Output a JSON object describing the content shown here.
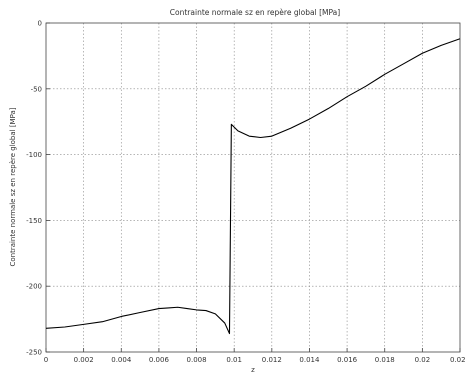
{
  "chart_data": {
    "type": "line",
    "title": "Contrainte normale sz en repère global [MPa]",
    "xlabel": "z",
    "ylabel": "Contrainte normale sz en repère global [MPa]",
    "xlim": [
      0,
      0.022
    ],
    "ylim": [
      -250,
      0
    ],
    "grid": true,
    "x_ticks": [
      0,
      0.002,
      0.004,
      0.006,
      0.008,
      0.01,
      0.012,
      0.014,
      0.016,
      0.018,
      0.02,
      0.022
    ],
    "x_tick_labels": [
      "0",
      "0.002",
      "0.004",
      "0.006",
      "0.008",
      "0.01",
      "0.012",
      "0.014",
      "0.016",
      "0.018",
      "0.02",
      "0.022"
    ],
    "y_ticks": [
      -250,
      -200,
      -150,
      -100,
      -50,
      0
    ],
    "y_tick_labels": [
      "-250",
      "-200",
      "-150",
      "-100",
      "-50",
      "0"
    ],
    "series": [
      {
        "color": "#000000",
        "x": [
          0,
          0.001,
          0.002,
          0.003,
          0.004,
          0.005,
          0.006,
          0.0065,
          0.007,
          0.0075,
          0.008,
          0.0085,
          0.009,
          0.0095,
          0.00975,
          0.00985,
          0.0102,
          0.0108,
          0.0114,
          0.012,
          0.013,
          0.014,
          0.015,
          0.016,
          0.017,
          0.018,
          0.019,
          0.02,
          0.021,
          0.022
        ],
        "y": [
          -232,
          -231,
          -229,
          -227,
          -223,
          -220,
          -217,
          -216.5,
          -216,
          -217,
          -218,
          -218.5,
          -221,
          -228,
          -236,
          -77,
          -82,
          -86,
          -87,
          -86,
          -80,
          -73,
          -65,
          -56,
          -48,
          -39,
          -31,
          -23,
          -17,
          -12
        ]
      }
    ]
  }
}
